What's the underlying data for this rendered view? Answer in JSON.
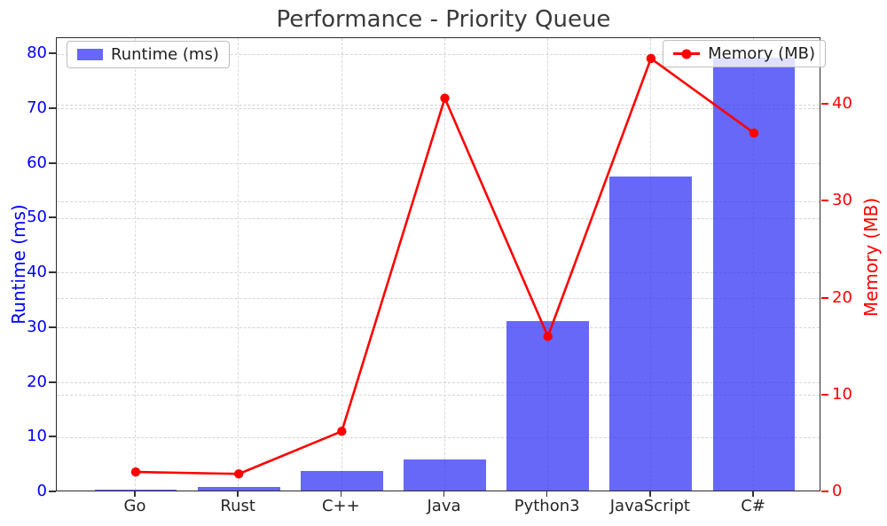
{
  "chart_data": {
    "type": "bar+line",
    "title": "Performance - Priority Queue",
    "categories": [
      "Go",
      "Rust",
      "C++",
      "Java",
      "Python3",
      "JavaScript",
      "C#"
    ],
    "series": [
      {
        "name": "Runtime (ms)",
        "type": "bar",
        "axis": "left",
        "color": "#2e2ef5",
        "values": [
          0.1,
          0.6,
          3.6,
          5.7,
          31.0,
          57.3,
          79.0
        ]
      },
      {
        "name": "Memory (MB)",
        "type": "line",
        "axis": "right",
        "color": "#ff0000",
        "values": [
          2.1,
          1.9,
          6.3,
          40.7,
          16.1,
          44.8,
          37.1
        ]
      }
    ],
    "left_axis": {
      "label": "Runtime (ms)",
      "color": "#0000ff",
      "ticks": [
        0,
        10,
        20,
        30,
        40,
        50,
        60,
        70,
        80
      ],
      "max": 82.95
    },
    "right_axis": {
      "label": "Memory (MB)",
      "color": "#ff0000",
      "ticks": [
        0,
        10,
        20,
        30,
        40
      ],
      "max": 46.9
    },
    "grid": true,
    "legend_positions": [
      "upper left",
      "upper right"
    ],
    "tick_mark_colors": {
      "left": "#333333",
      "right": "#ff0000"
    }
  }
}
